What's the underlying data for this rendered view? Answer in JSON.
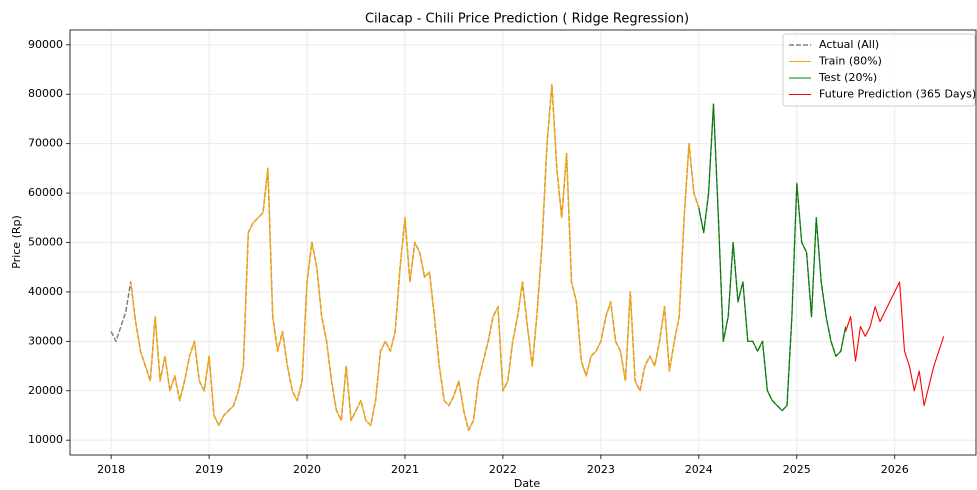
{
  "chart_data": {
    "type": "line",
    "title": "Cilacap - Chili Price Prediction ( Ridge Regression)",
    "x_label": "Date",
    "y_label": "Price (Rp)",
    "xlim": [
      2017.58,
      2026.83
    ],
    "xticks": [
      2018,
      2019,
      2020,
      2021,
      2022,
      2023,
      2024,
      2025,
      2026
    ],
    "ylim": [
      7000,
      93000
    ],
    "yticks": [
      10000,
      20000,
      30000,
      40000,
      50000,
      60000,
      70000,
      80000,
      90000
    ],
    "grid": true,
    "legend": "upper right",
    "x": [
      2018,
      2018.05,
      2018.1,
      2018.15,
      2018.2,
      2018.25,
      2018.3,
      2018.35,
      2018.4,
      2018.45,
      2018.5,
      2018.55,
      2018.6,
      2018.65,
      2018.7,
      2018.75,
      2018.8,
      2018.85,
      2018.9,
      2018.95,
      2019,
      2019.05,
      2019.1,
      2019.15,
      2019.2,
      2019.25,
      2019.3,
      2019.35,
      2019.4,
      2019.45,
      2019.5,
      2019.55,
      2019.6,
      2019.65,
      2019.7,
      2019.75,
      2019.8,
      2019.85,
      2019.9,
      2019.95,
      2020,
      2020.05,
      2020.1,
      2020.15,
      2020.2,
      2020.25,
      2020.3,
      2020.35,
      2020.4,
      2020.45,
      2020.5,
      2020.55,
      2020.6,
      2020.65,
      2020.7,
      2020.75,
      2020.8,
      2020.85,
      2020.9,
      2020.95,
      2021,
      2021.05,
      2021.1,
      2021.15,
      2021.2,
      2021.25,
      2021.3,
      2021.35,
      2021.4,
      2021.45,
      2021.5,
      2021.55,
      2021.6,
      2021.65,
      2021.7,
      2021.75,
      2021.8,
      2021.85,
      2021.9,
      2021.95,
      2022,
      2022.05,
      2022.1,
      2022.15,
      2022.2,
      2022.25,
      2022.3,
      2022.35,
      2022.4,
      2022.45,
      2022.5,
      2022.55,
      2022.6,
      2022.65,
      2022.7,
      2022.75,
      2022.8,
      2022.85,
      2022.9,
      2022.95,
      2023,
      2023.05,
      2023.1,
      2023.15,
      2023.2,
      2023.25,
      2023.3,
      2023.35,
      2023.4,
      2023.45,
      2023.5,
      2023.55,
      2023.6,
      2023.65,
      2023.7,
      2023.75,
      2023.8,
      2023.85,
      2023.9,
      2023.95,
      2024,
      2024.05,
      2024.1,
      2024.15,
      2024.2,
      2024.25,
      2024.3,
      2024.35,
      2024.4,
      2024.45,
      2024.5,
      2024.55,
      2024.6,
      2024.65,
      2024.7,
      2024.75,
      2024.8,
      2024.85,
      2024.9,
      2024.95,
      2025,
      2025.05,
      2025.1,
      2025.15,
      2025.2,
      2025.25,
      2025.3,
      2025.35,
      2025.4,
      2025.45,
      2025.5,
      2025.55,
      2025.6,
      2025.65,
      2025.7,
      2025.75,
      2025.8,
      2025.85,
      2025.9,
      2025.95,
      2026,
      2026.05,
      2026.1,
      2026.15,
      2026.2,
      2026.25,
      2026.3,
      2026.35,
      2026.4,
      2026.45,
      2026.5
    ],
    "series": [
      {
        "name": "Actual (All)",
        "color": "#808080",
        "dash": true,
        "values": [
          32000,
          30000,
          33000,
          36000,
          42000,
          34000,
          28000,
          25000,
          22000,
          35000,
          22000,
          27000,
          20000,
          23000,
          18000,
          22000,
          27000,
          30000,
          22000,
          20000,
          27000,
          15000,
          13000,
          15000,
          16000,
          17000,
          20000,
          25000,
          52000,
          54000,
          55000,
          56000,
          65000,
          35000,
          28000,
          32000,
          25000,
          20000,
          18000,
          22000,
          42000,
          50000,
          45000,
          35000,
          30000,
          22000,
          16000,
          14000,
          25000,
          14000,
          16000,
          18000,
          14000,
          13000,
          18000,
          28000,
          30000,
          28000,
          32000,
          45000,
          55000,
          42000,
          50000,
          48000,
          43000,
          44000,
          35000,
          25000,
          18000,
          17000,
          19000,
          22000,
          16000,
          12000,
          14000,
          22000,
          26000,
          30000,
          35000,
          37000,
          20000,
          22000,
          30000,
          35000,
          42000,
          33000,
          25000,
          36000,
          50000,
          70000,
          82000,
          65000,
          55000,
          68000,
          42000,
          38000,
          26000,
          23000,
          27000,
          28000,
          30000,
          35000,
          38000,
          30000,
          28000,
          22000,
          40000,
          22000,
          20000,
          25000,
          27000,
          25000,
          30000,
          37000,
          24000,
          30000,
          35000,
          55000,
          70000,
          60000,
          57000,
          52000,
          60000,
          78000,
          55000,
          30000,
          35000,
          50000,
          38000,
          42000,
          30000,
          30000,
          28000,
          30000,
          20000,
          18000,
          17000,
          16000,
          17000,
          35000,
          62000,
          50000,
          48000,
          35000,
          55000,
          42000,
          35000,
          30000,
          27000,
          28000,
          33000,
          null,
          null,
          null,
          null,
          null,
          null,
          null,
          null,
          null,
          null,
          null,
          null,
          null,
          null,
          null,
          null,
          null,
          null,
          null,
          null
        ]
      },
      {
        "name": "Train (80%)",
        "color": "#ffa500",
        "values": [
          null,
          null,
          null,
          null,
          42000,
          34000,
          28000,
          25000,
          22000,
          35000,
          22000,
          27000,
          20000,
          23000,
          18000,
          22000,
          27000,
          30000,
          22000,
          20000,
          27000,
          15000,
          13000,
          15000,
          16000,
          17000,
          20000,
          25000,
          52000,
          54000,
          55000,
          56000,
          65000,
          35000,
          28000,
          32000,
          25000,
          20000,
          18000,
          22000,
          42000,
          50000,
          45000,
          35000,
          30000,
          22000,
          16000,
          14000,
          25000,
          14000,
          16000,
          18000,
          14000,
          13000,
          18000,
          28000,
          30000,
          28000,
          32000,
          45000,
          55000,
          42000,
          50000,
          48000,
          43000,
          44000,
          35000,
          25000,
          18000,
          17000,
          19000,
          22000,
          16000,
          12000,
          14000,
          22000,
          26000,
          30000,
          35000,
          37000,
          20000,
          22000,
          30000,
          35000,
          42000,
          33000,
          25000,
          36000,
          50000,
          70000,
          82000,
          65000,
          55000,
          68000,
          42000,
          38000,
          26000,
          23000,
          27000,
          28000,
          30000,
          35000,
          38000,
          30000,
          28000,
          22000,
          40000,
          22000,
          20000,
          25000,
          27000,
          25000,
          30000,
          37000,
          24000,
          30000,
          35000,
          55000,
          70000,
          60000,
          57000,
          null,
          null,
          null,
          null,
          null,
          null,
          null,
          null,
          null,
          null,
          null,
          null,
          null,
          null,
          null,
          null,
          null,
          null,
          null,
          null,
          null,
          null,
          null,
          null,
          null,
          null,
          null,
          null,
          null,
          null,
          null,
          null,
          null,
          null,
          null,
          null,
          null,
          null,
          null,
          null,
          null,
          null,
          null,
          null,
          null,
          null,
          null,
          null,
          null,
          null
        ]
      },
      {
        "name": "Test (20%)",
        "color": "#008000",
        "values": [
          null,
          null,
          null,
          null,
          null,
          null,
          null,
          null,
          null,
          null,
          null,
          null,
          null,
          null,
          null,
          null,
          null,
          null,
          null,
          null,
          null,
          null,
          null,
          null,
          null,
          null,
          null,
          null,
          null,
          null,
          null,
          null,
          null,
          null,
          null,
          null,
          null,
          null,
          null,
          null,
          null,
          null,
          null,
          null,
          null,
          null,
          null,
          null,
          null,
          null,
          null,
          null,
          null,
          null,
          null,
          null,
          null,
          null,
          null,
          null,
          null,
          null,
          null,
          null,
          null,
          null,
          null,
          null,
          null,
          null,
          null,
          null,
          null,
          null,
          null,
          null,
          null,
          null,
          null,
          null,
          null,
          null,
          null,
          null,
          null,
          null,
          null,
          null,
          null,
          null,
          null,
          null,
          null,
          null,
          null,
          null,
          null,
          null,
          null,
          null,
          null,
          null,
          null,
          null,
          null,
          null,
          null,
          null,
          null,
          null,
          null,
          null,
          null,
          null,
          null,
          null,
          null,
          null,
          null,
          null,
          57000,
          52000,
          60000,
          78000,
          55000,
          30000,
          35000,
          50000,
          38000,
          42000,
          30000,
          30000,
          28000,
          30000,
          20000,
          18000,
          17000,
          16000,
          17000,
          35000,
          62000,
          50000,
          48000,
          35000,
          55000,
          42000,
          35000,
          30000,
          27000,
          28000,
          33000,
          null,
          null,
          null,
          null,
          null,
          null,
          null,
          null,
          null,
          null,
          null,
          null,
          null,
          null,
          null,
          null,
          null,
          null,
          null,
          null
        ]
      },
      {
        "name": "Future Prediction (365 Days)",
        "color": "#ff0000",
        "values": [
          null,
          null,
          null,
          null,
          null,
          null,
          null,
          null,
          null,
          null,
          null,
          null,
          null,
          null,
          null,
          null,
          null,
          null,
          null,
          null,
          null,
          null,
          null,
          null,
          null,
          null,
          null,
          null,
          null,
          null,
          null,
          null,
          null,
          null,
          null,
          null,
          null,
          null,
          null,
          null,
          null,
          null,
          null,
          null,
          null,
          null,
          null,
          null,
          null,
          null,
          null,
          null,
          null,
          null,
          null,
          null,
          null,
          null,
          null,
          null,
          null,
          null,
          null,
          null,
          null,
          null,
          null,
          null,
          null,
          null,
          null,
          null,
          null,
          null,
          null,
          null,
          null,
          null,
          null,
          null,
          null,
          null,
          null,
          null,
          null,
          null,
          null,
          null,
          null,
          null,
          null,
          null,
          null,
          null,
          null,
          null,
          null,
          null,
          null,
          null,
          null,
          null,
          null,
          null,
          null,
          null,
          null,
          null,
          null,
          null,
          null,
          null,
          null,
          null,
          null,
          null,
          null,
          null,
          null,
          null,
          null,
          null,
          null,
          null,
          null,
          null,
          null,
          null,
          null,
          null,
          null,
          null,
          null,
          null,
          null,
          null,
          null,
          null,
          null,
          null,
          null,
          null,
          null,
          null,
          null,
          null,
          null,
          null,
          null,
          null,
          32000,
          35000,
          26000,
          33000,
          31000,
          33000,
          37000,
          34000,
          36000,
          38000,
          40000,
          42000,
          28000,
          25000,
          20000,
          24000,
          17000,
          21000,
          25000,
          28000,
          31000
        ]
      }
    ]
  }
}
